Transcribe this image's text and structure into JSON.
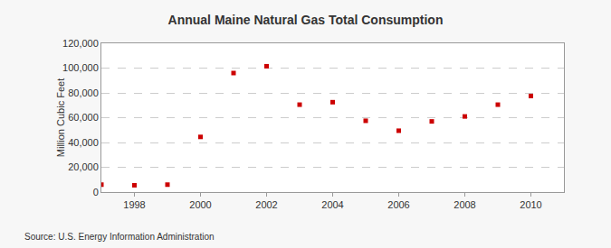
{
  "chart_data": {
    "type": "scatter",
    "title": "Annual Maine Natural Gas Total Consumption",
    "y_label": "Million Cubic Feet",
    "annotations": [
      "Source: U.S. Energy Information Administration"
    ],
    "x": [
      1997,
      1998,
      1999,
      2000,
      2001,
      2002,
      2003,
      2004,
      2005,
      2006,
      2007,
      2008,
      2009,
      2010
    ],
    "values": [
      6000,
      5500,
      6000,
      44500,
      96000,
      101500,
      70500,
      72500,
      57500,
      49500,
      57000,
      61000,
      70500,
      77500
    ],
    "color": "#cc0000",
    "marker": "square",
    "xlim": [
      1997,
      2011
    ],
    "xticks": [
      1998,
      2000,
      2002,
      2004,
      2006,
      2008,
      2010
    ],
    "ylim": [
      0,
      120000
    ],
    "yticks": [
      0,
      {
        "value": 20000,
        "label": "20,000"
      },
      {
        "value": 40000,
        "label": "40,000"
      },
      {
        "value": 60000,
        "label": "60,000"
      },
      {
        "value": 80000,
        "label": "80,000"
      },
      {
        "value": 100000,
        "label": "100,000"
      },
      {
        "value": 120000,
        "label": "120,000"
      }
    ],
    "grid": true
  }
}
